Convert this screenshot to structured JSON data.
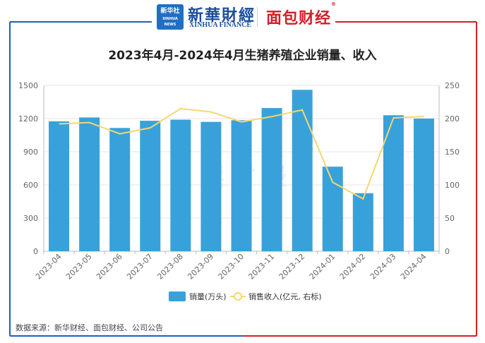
{
  "header": {
    "logo_text": "新华社",
    "logo_seal_text": "XINHUA NEWS",
    "brand_cn": "新華財經",
    "brand_en": "XINHUA FINANCE",
    "partner_brand": "面包财经",
    "partner_mark": "®"
  },
  "watermark": "读财报",
  "source_text": "数据来源：新华财经、面包财经、公司公告",
  "colors": {
    "frame_left": "#1f5fbf",
    "frame_right": "#d21f26",
    "bar": "#39a1d9",
    "line": "#f5d76e",
    "grid": "#e6e6e6",
    "axis_text": "#666666"
  },
  "chart_data": {
    "type": "bar+line",
    "title": "2023年4月-2024年4月生猪养殖企业销量、收入",
    "categories": [
      "2023-04",
      "2023-05",
      "2023-06",
      "2023-07",
      "2023-08",
      "2023-09",
      "2023-10",
      "2023-11",
      "2023-12",
      "2024-01",
      "2024-02",
      "2024-03",
      "2024-04"
    ],
    "series": [
      {
        "name": "销量(万头)",
        "type": "bar",
        "axis": "left",
        "values": [
          1175,
          1210,
          1115,
          1180,
          1190,
          1170,
          1185,
          1295,
          1460,
          765,
          525,
          1230,
          1200
        ]
      },
      {
        "name": "销售收入(亿元, 右标)",
        "type": "line",
        "axis": "right",
        "values": [
          192,
          194,
          177,
          186,
          215,
          210,
          195,
          203,
          213,
          104,
          79,
          201,
          203
        ]
      }
    ],
    "y_left": {
      "min": 0,
      "max": 1500,
      "ticks": [
        0,
        300,
        600,
        900,
        1200,
        1500
      ]
    },
    "y_right": {
      "min": 0,
      "max": 250,
      "ticks": [
        0,
        50,
        100,
        150,
        200,
        250
      ]
    },
    "grid": true,
    "legend_position": "bottom-center"
  }
}
